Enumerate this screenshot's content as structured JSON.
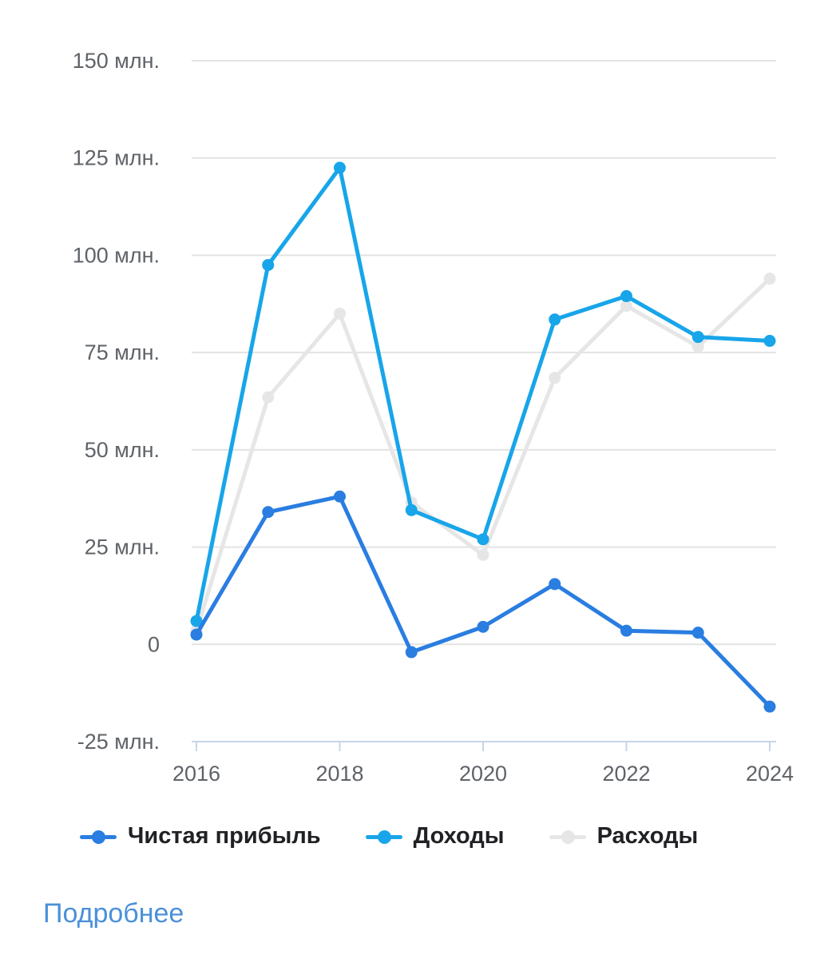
{
  "colors": {
    "net_profit": "#2a7de1",
    "revenue": "#18a5e9",
    "expenses": "#e6e6e6",
    "grid": "#e3e3e3",
    "axis": "#c9d3ea",
    "text": "#5f6368",
    "link": "#4a90d9"
  },
  "chart_data": {
    "type": "line",
    "x": [
      2016,
      2017,
      2018,
      2019,
      2020,
      2021,
      2022,
      2023,
      2024
    ],
    "xticks": [
      2016,
      2018,
      2020,
      2022,
      2024
    ],
    "ylim": [
      -25,
      150
    ],
    "yticks": [
      {
        "value": 150,
        "label": "150 млн."
      },
      {
        "value": 125,
        "label": "125 млн."
      },
      {
        "value": 100,
        "label": "100 млн."
      },
      {
        "value": 75,
        "label": "75 млн."
      },
      {
        "value": 50,
        "label": "50 млн."
      },
      {
        "value": 25,
        "label": "25 млн."
      },
      {
        "value": 0,
        "label": "0"
      },
      {
        "value": -25,
        "label": "-25 млн."
      }
    ],
    "grid": true,
    "legend_position": "bottom",
    "series": [
      {
        "name": "Расходы",
        "key": "expenses",
        "values": [
          3.5,
          63.5,
          85,
          36.5,
          23,
          68.5,
          87,
          76.5,
          94
        ]
      },
      {
        "name": "Доходы",
        "key": "revenue",
        "values": [
          6,
          97.5,
          122.5,
          34.5,
          27,
          83.5,
          89.5,
          79,
          78
        ]
      },
      {
        "name": "Чистая прибыль",
        "key": "net_profit",
        "values": [
          2.5,
          34,
          38,
          -2,
          4.5,
          15.5,
          3.5,
          3,
          -16
        ]
      }
    ]
  },
  "legend": [
    {
      "label": "Чистая прибыль",
      "key": "net_profit"
    },
    {
      "label": "Доходы",
      "key": "revenue"
    },
    {
      "label": "Расходы",
      "key": "expenses"
    }
  ],
  "more_link": "Подробнее"
}
